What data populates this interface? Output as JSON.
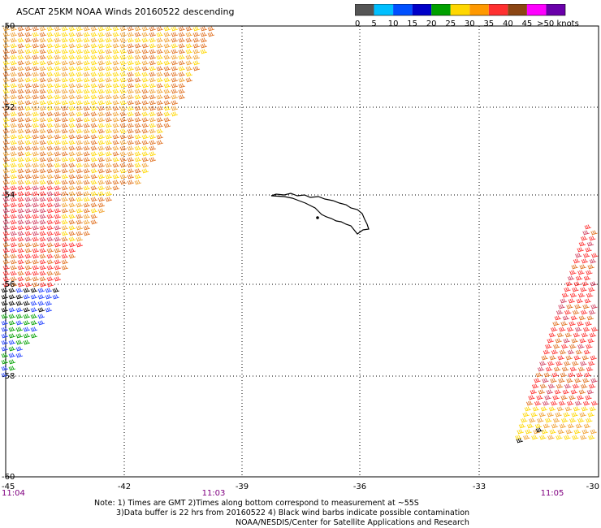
{
  "title": "ASCAT 25KM NOAA Winds 20160522 descending",
  "legend": {
    "labels": [
      "0",
      "5",
      "10",
      "15",
      "20",
      "25",
      "30",
      "35",
      "40",
      "45",
      ">50 knots"
    ],
    "colors": [
      "#555555",
      "#00bfff",
      "#0050ff",
      "#0000c8",
      "#00a000",
      "#ffd700",
      "#ff9900",
      "#ff3030",
      "#8b4513",
      "#ff00ff",
      "#6a00aa"
    ]
  },
  "map": {
    "lat_labels": [
      "-50",
      "-52",
      "-54",
      "-56",
      "-58",
      "-60"
    ],
    "lon_labels": [
      "-45",
      "-42",
      "-39",
      "-36",
      "-33",
      "-30"
    ],
    "time_labels": [
      "11:04",
      "11:03",
      "11:05"
    ],
    "coastline": "South Georgia island",
    "swath_colors": [
      "#e07020",
      "#f0a030",
      "#ffd700",
      "#d04060",
      "#ff3030",
      "#2040ff",
      "#00a000",
      "#000000"
    ]
  },
  "notes": {
    "line1": "Note: 1) Times are GMT 2)Times along bottom correspond to measurement at ~55S",
    "line2": "3)Data buffer is 22 hrs from 20160522 4) Black wind barbs indicate possible contamination",
    "line3": "NOAA/NESDIS/Center for Satellite Applications and Research"
  }
}
